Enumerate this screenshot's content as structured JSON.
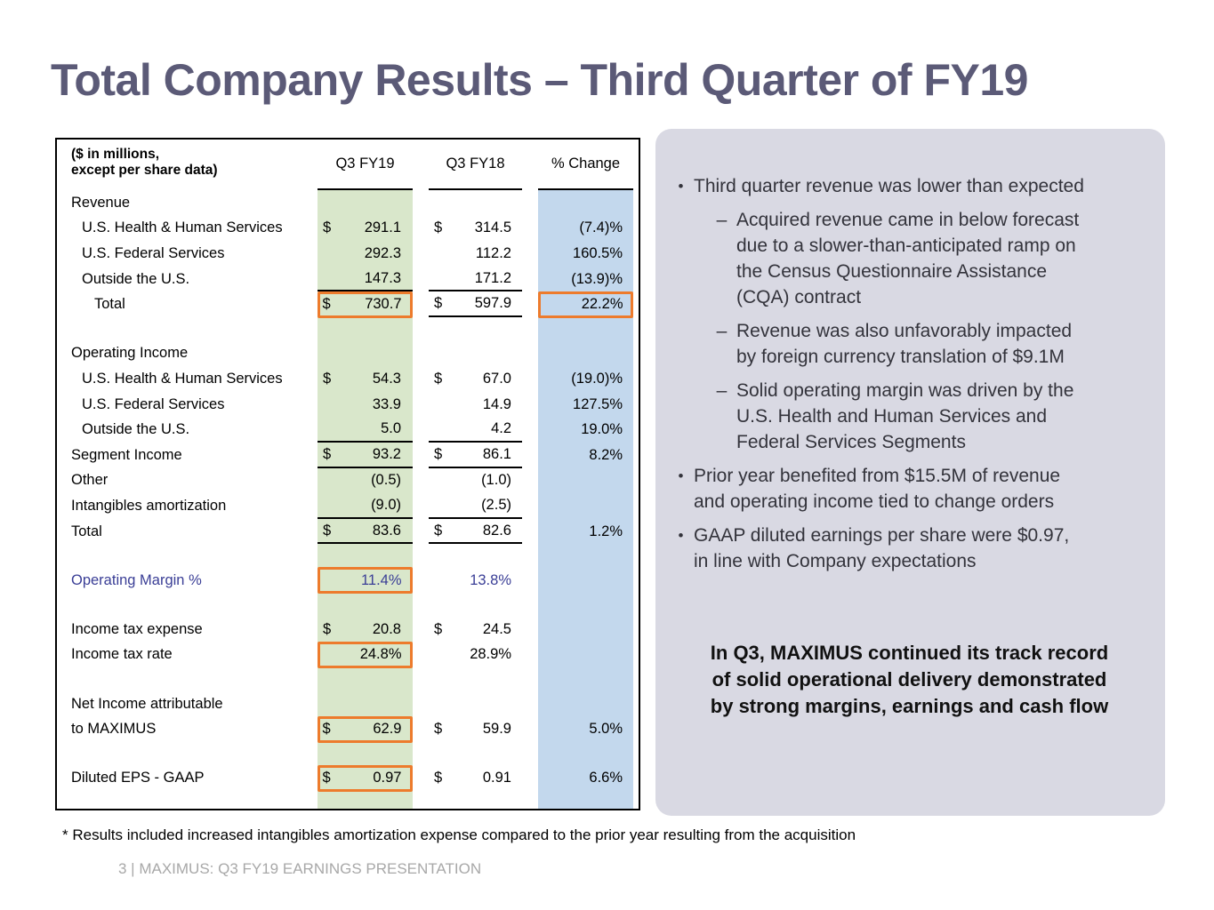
{
  "slide": {
    "title": "Total Company Results – Third Quarter of FY19",
    "footnote": "* Results included increased intangibles amortization expense compared to the prior year resulting from the acquisition",
    "page_footer": "3 | MAXIMUS: Q3 FY19 EARNINGS PRESENTATION"
  },
  "colors": {
    "title_text": "#5B5A77",
    "highlight_orange": "#ED7B2C",
    "fy19_column_green": "#D9E7CB",
    "change_column_blue": "#C3D8ED",
    "panel_lavender": "#D9D9E3",
    "operating_margin_blue": "#3A3E96",
    "footer_gray": "#A8A8A8"
  },
  "table": {
    "caption": "($ in millions,\nexcept per share data)",
    "columns": [
      "Q3 FY19",
      "Q3 FY18",
      "% Change"
    ],
    "rows": [
      {
        "label": "Revenue",
        "indent": 0
      },
      {
        "label": "U.S. Health & Human Services",
        "indent": 1,
        "d1": "$",
        "v1": "291.1",
        "d2": "$",
        "v2": "314.5",
        "v3": "(7.4)%"
      },
      {
        "label": "U.S. Federal Services",
        "indent": 1,
        "v1": "292.3",
        "v2": "112.2",
        "v3": "160.5%"
      },
      {
        "label": "Outside the U.S.",
        "indent": 1,
        "v1": "147.3",
        "v2": "171.2",
        "v3": "(13.9)%",
        "rule1": true,
        "rule2": true
      },
      {
        "label": "Total",
        "indent": 2,
        "d1": "$",
        "v1": "730.7",
        "d2": "$",
        "v2": "597.9",
        "v3": "22.2%",
        "hl1": true,
        "hl3": true,
        "rule2": true
      },
      {
        "spacer": true
      },
      {
        "label": "Operating Income",
        "indent": 0
      },
      {
        "label": "U.S. Health & Human Services",
        "indent": 1,
        "d1": "$",
        "v1": "54.3",
        "d2": "$",
        "v2": "67.0",
        "v3": "(19.0)%"
      },
      {
        "label": "U.S. Federal Services",
        "indent": 1,
        "v1": "33.9",
        "v2": "14.9",
        "v3": "127.5%"
      },
      {
        "label": "Outside the U.S.",
        "indent": 1,
        "v1": "5.0",
        "v2": "4.2",
        "v3": "19.0%",
        "rule1": true,
        "rule2": true
      },
      {
        "label": "Segment Income",
        "indent": 0,
        "d1": "$",
        "v1": "93.2",
        "d2": "$",
        "v2": "86.1",
        "v3": "8.2%",
        "rule1": true,
        "rule2": true
      },
      {
        "label": "Other",
        "indent": 0,
        "v1": "(0.5)",
        "v2": "(1.0)"
      },
      {
        "label": "Intangibles amortization",
        "indent": 0,
        "v1": "(9.0)",
        "v2": "(2.5)",
        "rule1": true,
        "rule2": true
      },
      {
        "label": "Total",
        "indent": 0,
        "d1": "$",
        "v1": "83.6",
        "d2": "$",
        "v2": "82.6",
        "v3": "1.2%",
        "rule1": true,
        "rule2": true
      },
      {
        "spacer": true
      },
      {
        "label": "Operating Margin %",
        "indent": 0,
        "label_blue": true,
        "v1": "11.4%",
        "v1_blue": true,
        "hl1": true,
        "v2": "13.8%",
        "v2_blue": true
      },
      {
        "spacer": true
      },
      {
        "label": "Income tax expense",
        "indent": 0,
        "d1": "$",
        "v1": "20.8",
        "d2": "$",
        "v2": "24.5"
      },
      {
        "label": "Income tax rate",
        "indent": 0,
        "v1": "24.8%",
        "hl1": true,
        "v2": "28.9%"
      },
      {
        "spacer": true
      },
      {
        "label": "Net Income attributable",
        "indent": 0
      },
      {
        "label": "to MAXIMUS",
        "indent": 0,
        "d1": "$",
        "v1": "62.9",
        "hl1": true,
        "d2": "$",
        "v2": "59.9",
        "v3": "5.0%"
      },
      {
        "spacer": true
      },
      {
        "label": "Diluted EPS - GAAP",
        "indent": 0,
        "d1": "$",
        "v1": "0.97",
        "hl1": true,
        "d2": "$",
        "v2": "0.91",
        "v3": "6.6%"
      }
    ]
  },
  "panel": {
    "bullet_marker": "•",
    "sub_bullet_marker": "–",
    "bullets": [
      {
        "level": 1,
        "text": "Third quarter revenue was lower than expected"
      },
      {
        "level": 2,
        "text": "Acquired revenue came in below forecast\ndue to a slower-than-anticipated ramp on\nthe Census Questionnaire Assistance\n(CQA) contract"
      },
      {
        "level": 2,
        "text": "Revenue was also unfavorably impacted\nby foreign currency translation of $9.1M"
      },
      {
        "level": 2,
        "text": "Solid operating margin was driven by the\nU.S. Health and Human Services and\nFederal Services Segments"
      },
      {
        "level": 1,
        "text": "Prior year benefited from $15.5M of revenue\nand operating income tied to change orders"
      },
      {
        "level": 1,
        "text": "GAAP diluted earnings per share were $0.97,\nin line with Company expectations"
      }
    ],
    "callout": "In Q3, MAXIMUS continued its track record\nof solid operational delivery demonstrated\nby strong margins, earnings and cash flow"
  }
}
